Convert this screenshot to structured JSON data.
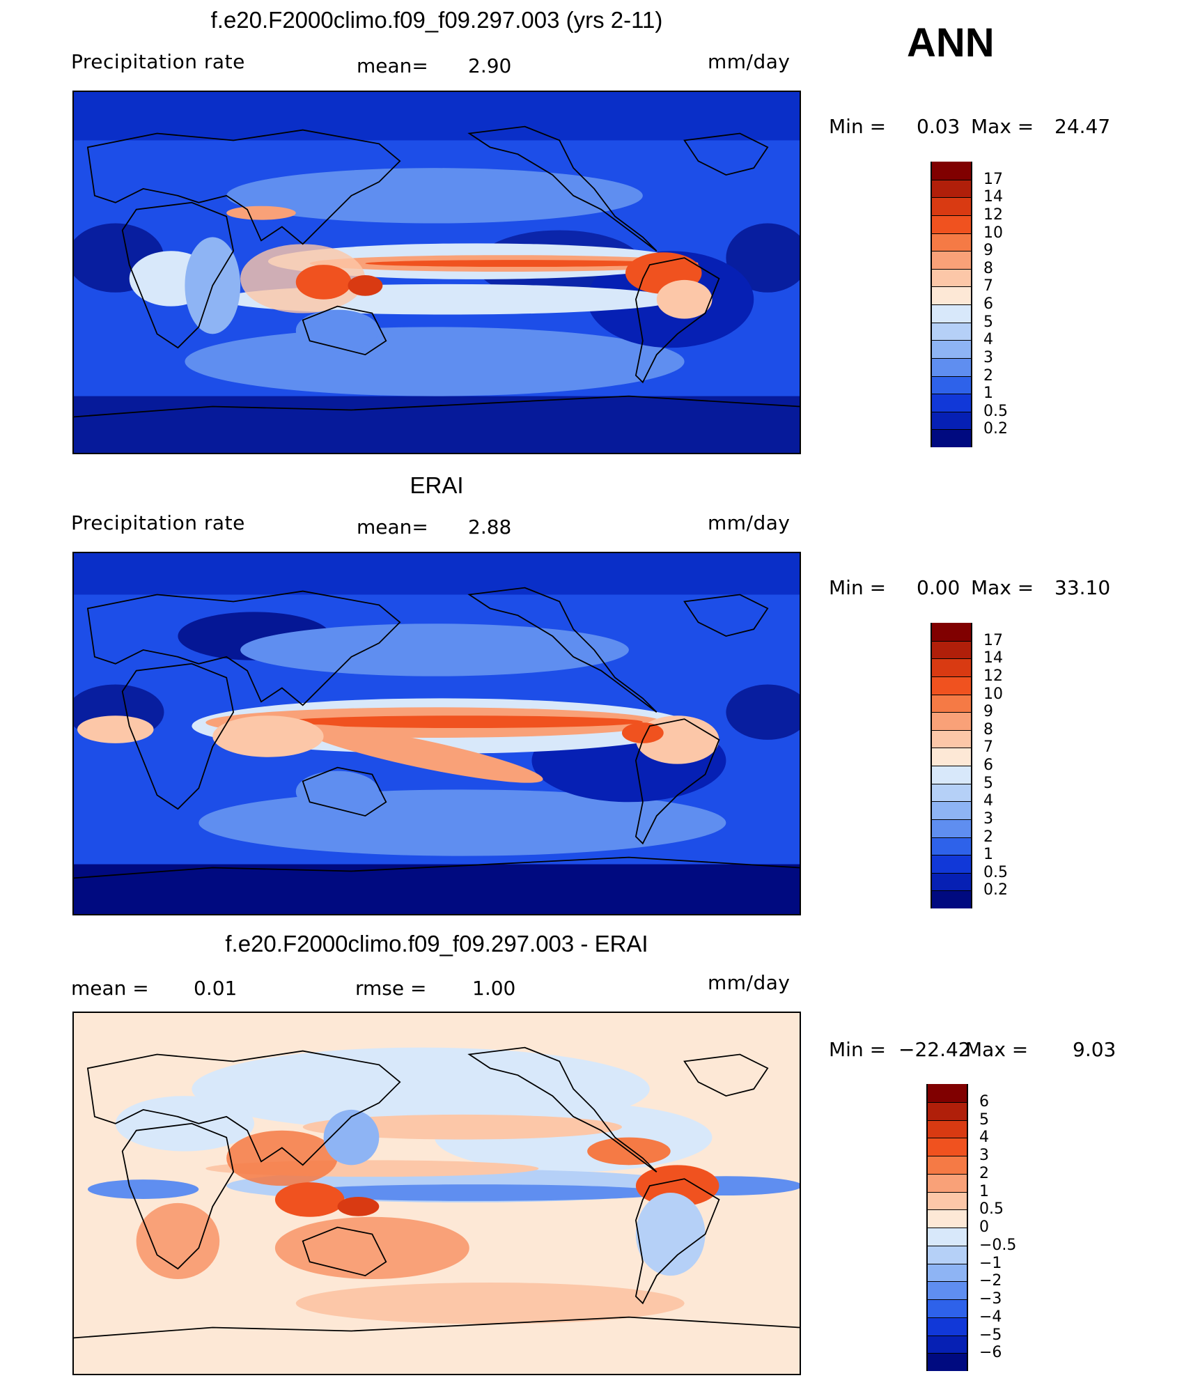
{
  "header": {
    "season": "ANN"
  },
  "panels": [
    {
      "title": "f.e20.F2000climo.f09_f09.297.003 (yrs 2-11)",
      "left_label": "Precipitation  rate",
      "mid_label": "mean=",
      "mid_value": "2.90",
      "units": "mm/day",
      "minmax": {
        "min_label": "Min  =",
        "min_value": "0.03",
        "max_label": "Max  =",
        "max_value": "24.47"
      },
      "colorbar": {
        "levels": [
          "17",
          "14",
          "12",
          "10",
          "9",
          "8",
          "7",
          "6",
          "5",
          "4",
          "3",
          "2",
          "1",
          "0.5",
          "0.2"
        ],
        "colors": [
          "#800000",
          "#b01f0a",
          "#d93a12",
          "#f0521f",
          "#f57a45",
          "#f9a178",
          "#fcc7a8",
          "#fde8d6",
          "#d8e8fa",
          "#b5d0f7",
          "#8eb4f4",
          "#5f8ef0",
          "#2e62ea",
          "#1138d8",
          "#0620b4",
          "#000a80"
        ]
      },
      "map_style": "model"
    },
    {
      "title": "ERAI",
      "left_label": "Precipitation  rate",
      "mid_label": "mean=",
      "mid_value": "2.88",
      "units": "mm/day",
      "minmax": {
        "min_label": "Min  =",
        "min_value": "0.00",
        "max_label": "Max  =",
        "max_value": "33.10"
      },
      "colorbar": {
        "levels": [
          "17",
          "14",
          "12",
          "10",
          "9",
          "8",
          "7",
          "6",
          "5",
          "4",
          "3",
          "2",
          "1",
          "0.5",
          "0.2"
        ],
        "colors": [
          "#800000",
          "#b01f0a",
          "#d93a12",
          "#f0521f",
          "#f57a45",
          "#f9a178",
          "#fcc7a8",
          "#fde8d6",
          "#d8e8fa",
          "#b5d0f7",
          "#8eb4f4",
          "#5f8ef0",
          "#2e62ea",
          "#1138d8",
          "#0620b4",
          "#000a80"
        ]
      },
      "map_style": "obs"
    },
    {
      "title": "f.e20.F2000climo.f09_f09.297.003 - ERAI",
      "left_label": "mean  =",
      "left_value": "0.01",
      "mid_label": "rmse  =",
      "mid_value": "1.00",
      "units": "mm/day",
      "minmax": {
        "min_label": "Min  =",
        "min_value": "−22.42",
        "max_label": "Max  =",
        "max_value": "9.03"
      },
      "colorbar": {
        "levels": [
          "6",
          "5",
          "4",
          "3",
          "2",
          "1",
          "0.5",
          "0",
          "−0.5",
          "−1",
          "−2",
          "−3",
          "−4",
          "−5",
          "−6"
        ],
        "colors": [
          "#800000",
          "#b01f0a",
          "#d93a12",
          "#f0521f",
          "#f57a45",
          "#f9a178",
          "#fcc7a8",
          "#fde8d6",
          "#d8e8fa",
          "#b5d0f7",
          "#8eb4f4",
          "#5f8ef0",
          "#2e62ea",
          "#1138d8",
          "#0620b4",
          "#000a80"
        ]
      },
      "map_style": "diff"
    }
  ]
}
